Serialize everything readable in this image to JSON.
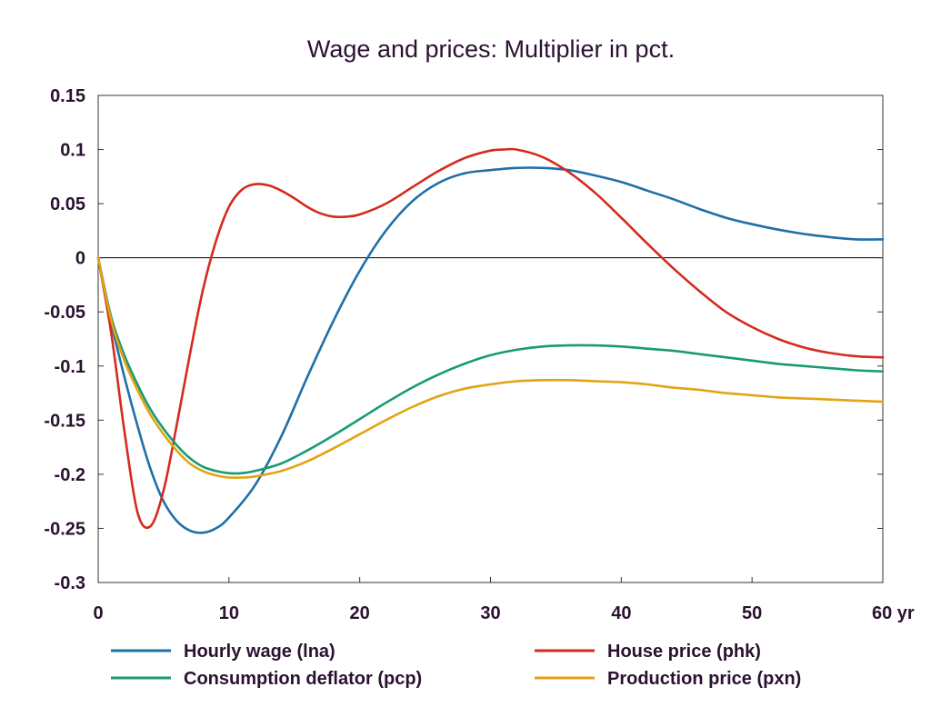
{
  "chart_data": {
    "type": "line",
    "title": "Wage and prices: Multiplier in pct.",
    "xlabel": "",
    "ylabel": "",
    "xlim": [
      0,
      60
    ],
    "ylim": [
      -0.3,
      0.15
    ],
    "x_ticks": [
      "0",
      "10",
      "20",
      "30",
      "40",
      "50",
      "60 yr"
    ],
    "x_tick_values": [
      0,
      10,
      20,
      30,
      40,
      50,
      60
    ],
    "y_ticks": [
      "0.15",
      "0.1",
      "0.05",
      "0",
      "-0.05",
      "-0.1",
      "-0.15",
      "-0.2",
      "-0.25",
      "-0.3"
    ],
    "y_tick_values": [
      0.15,
      0.1,
      0.05,
      0,
      -0.05,
      -0.1,
      -0.15,
      -0.2,
      -0.25,
      -0.3
    ],
    "grid": false,
    "zero_line": true,
    "legend_position": "bottom",
    "series": [
      {
        "name": "Hourly wage (lna)",
        "color": "#1f6fa8",
        "x": [
          0,
          1,
          2,
          3,
          4,
          5,
          6,
          7,
          8,
          9,
          10,
          12,
          14,
          16,
          18,
          20,
          22,
          24,
          26,
          28,
          30,
          32,
          34,
          36,
          38,
          40,
          42,
          44,
          46,
          48,
          50,
          52,
          54,
          56,
          58,
          60
        ],
        "y": [
          0,
          -0.06,
          -0.11,
          -0.155,
          -0.195,
          -0.225,
          -0.243,
          -0.252,
          -0.254,
          -0.25,
          -0.24,
          -0.21,
          -0.165,
          -0.11,
          -0.058,
          -0.012,
          0.025,
          0.052,
          0.069,
          0.078,
          0.081,
          0.083,
          0.083,
          0.081,
          0.076,
          0.07,
          0.062,
          0.054,
          0.045,
          0.037,
          0.031,
          0.026,
          0.022,
          0.019,
          0.017,
          0.017
        ]
      },
      {
        "name": "House price (phk)",
        "color": "#d42b1e",
        "x": [
          0,
          1,
          2,
          3,
          4,
          5,
          6,
          7,
          8,
          9,
          10,
          11,
          12,
          13,
          14,
          15,
          16,
          17,
          18,
          19,
          20,
          22,
          24,
          26,
          28,
          30,
          31,
          32,
          34,
          36,
          38,
          40,
          42,
          44,
          46,
          48,
          50,
          52,
          54,
          56,
          58,
          60
        ],
        "y": [
          0,
          -0.07,
          -0.16,
          -0.235,
          -0.248,
          -0.215,
          -0.155,
          -0.09,
          -0.03,
          0.015,
          0.047,
          0.063,
          0.068,
          0.067,
          0.062,
          0.055,
          0.047,
          0.041,
          0.038,
          0.038,
          0.04,
          0.05,
          0.065,
          0.08,
          0.092,
          0.099,
          0.1,
          0.1,
          0.093,
          0.079,
          0.06,
          0.037,
          0.013,
          -0.01,
          -0.031,
          -0.05,
          -0.064,
          -0.075,
          -0.083,
          -0.088,
          -0.091,
          -0.092
        ]
      },
      {
        "name": "Consumption deflator (pcp)",
        "color": "#1a9a73",
        "x": [
          0,
          1,
          2,
          3,
          4,
          5,
          6,
          7,
          8,
          9,
          10,
          11,
          12,
          14,
          16,
          18,
          20,
          22,
          24,
          26,
          28,
          30,
          32,
          34,
          36,
          38,
          40,
          42,
          44,
          46,
          48,
          50,
          52,
          54,
          56,
          58,
          60
        ],
        "y": [
          0,
          -0.055,
          -0.09,
          -0.117,
          -0.14,
          -0.158,
          -0.173,
          -0.185,
          -0.193,
          -0.197,
          -0.199,
          -0.199,
          -0.197,
          -0.19,
          -0.178,
          -0.164,
          -0.149,
          -0.134,
          -0.12,
          -0.108,
          -0.098,
          -0.09,
          -0.085,
          -0.082,
          -0.081,
          -0.081,
          -0.082,
          -0.084,
          -0.086,
          -0.089,
          -0.092,
          -0.095,
          -0.098,
          -0.1,
          -0.102,
          -0.104,
          -0.105
        ]
      },
      {
        "name": "Production price (pxn)",
        "color": "#e3a312",
        "x": [
          0,
          1,
          2,
          3,
          4,
          5,
          6,
          7,
          8,
          9,
          10,
          11,
          12,
          14,
          16,
          18,
          20,
          22,
          24,
          26,
          28,
          30,
          32,
          34,
          36,
          38,
          40,
          42,
          44,
          46,
          48,
          50,
          52,
          54,
          56,
          58,
          60
        ],
        "y": [
          0,
          -0.058,
          -0.095,
          -0.122,
          -0.145,
          -0.163,
          -0.178,
          -0.19,
          -0.197,
          -0.201,
          -0.203,
          -0.203,
          -0.202,
          -0.197,
          -0.188,
          -0.176,
          -0.163,
          -0.15,
          -0.138,
          -0.128,
          -0.121,
          -0.117,
          -0.114,
          -0.113,
          -0.113,
          -0.114,
          -0.115,
          -0.117,
          -0.12,
          -0.122,
          -0.125,
          -0.127,
          -0.129,
          -0.13,
          -0.131,
          -0.132,
          -0.133
        ]
      }
    ]
  }
}
